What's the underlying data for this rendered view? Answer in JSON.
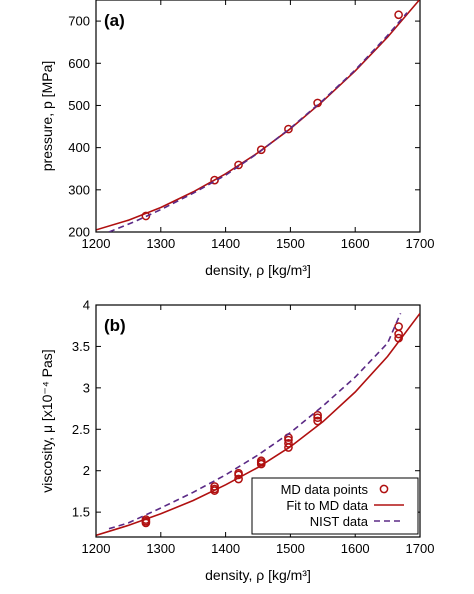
{
  "colors": {
    "md": "#b01010",
    "fit": "#b01010",
    "nist": "#5b2a86",
    "axis": "#000000"
  },
  "chart_data": [
    {
      "type": "scatter",
      "panel_label": "(a)",
      "xlabel": "density, ρ [kg/m³]",
      "ylabel": "pressure, p [MPa]",
      "xlim": [
        1200,
        1700
      ],
      "ylim": [
        200,
        750
      ],
      "xticks": [
        "1200",
        "1300",
        "1400",
        "1500",
        "1600",
        "1700"
      ],
      "yticks": [
        "200",
        "300",
        "400",
        "500",
        "600",
        "700"
      ],
      "grid": false,
      "series": [
        {
          "name": "MD data points",
          "style": "markers",
          "x": [
            1277,
            1383,
            1420,
            1455,
            1497,
            1542,
            1667
          ],
          "y": [
            238,
            323,
            359,
            395,
            444,
            506,
            715
          ]
        },
        {
          "name": "Fit to MD data",
          "style": "solid",
          "x": [
            1200,
            1250,
            1300,
            1350,
            1400,
            1450,
            1500,
            1550,
            1600,
            1650,
            1700
          ],
          "y": [
            205,
            228,
            258,
            295,
            338,
            388,
            445,
            510,
            582,
            662,
            752
          ]
        },
        {
          "name": "NIST data",
          "style": "dashed",
          "x": [
            1220,
            1260,
            1300,
            1350,
            1400,
            1450,
            1500,
            1550,
            1600,
            1650,
            1680
          ],
          "y": [
            200,
            225,
            253,
            292,
            335,
            387,
            446,
            512,
            584,
            666,
            720
          ]
        }
      ]
    },
    {
      "type": "scatter",
      "panel_label": "(b)",
      "xlabel": "density, ρ [kg/m³]",
      "ylabel": "viscosity, μ [x10⁻⁴ Pas]",
      "xlim": [
        1200,
        1700
      ],
      "ylim": [
        1.2,
        4.0
      ],
      "xticks": [
        "1200",
        "1300",
        "1400",
        "1500",
        "1600",
        "1700"
      ],
      "yticks": [
        "1.5",
        "2",
        "2.5",
        "3",
        "3.5",
        "4"
      ],
      "grid": false,
      "legend_position": "bottom-right",
      "legend": [
        "MD data points",
        "Fit to MD data",
        "NIST data"
      ],
      "series": [
        {
          "name": "MD data points",
          "style": "markers",
          "x": [
            1277,
            1277,
            1277,
            1383,
            1383,
            1383,
            1420,
            1420,
            1420,
            1455,
            1455,
            1455,
            1497,
            1497,
            1497,
            1497,
            1542,
            1542,
            1542,
            1667,
            1667,
            1667
          ],
          "y": [
            1.37,
            1.39,
            1.41,
            1.76,
            1.78,
            1.81,
            1.9,
            1.95,
            1.97,
            2.08,
            2.1,
            2.12,
            2.28,
            2.33,
            2.37,
            2.4,
            2.6,
            2.64,
            2.67,
            3.6,
            3.65,
            3.74
          ]
        },
        {
          "name": "Fit to MD data",
          "style": "solid",
          "x": [
            1200,
            1250,
            1300,
            1350,
            1400,
            1450,
            1500,
            1550,
            1600,
            1650,
            1700
          ],
          "y": [
            1.22,
            1.34,
            1.48,
            1.64,
            1.83,
            2.04,
            2.29,
            2.59,
            2.95,
            3.38,
            3.9
          ]
        },
        {
          "name": "NIST data",
          "style": "dashed",
          "x": [
            1220,
            1250,
            1300,
            1350,
            1400,
            1450,
            1500,
            1550,
            1600,
            1650,
            1670
          ],
          "y": [
            1.3,
            1.37,
            1.55,
            1.74,
            1.95,
            2.19,
            2.46,
            2.78,
            3.13,
            3.54,
            3.9
          ]
        }
      ]
    }
  ]
}
